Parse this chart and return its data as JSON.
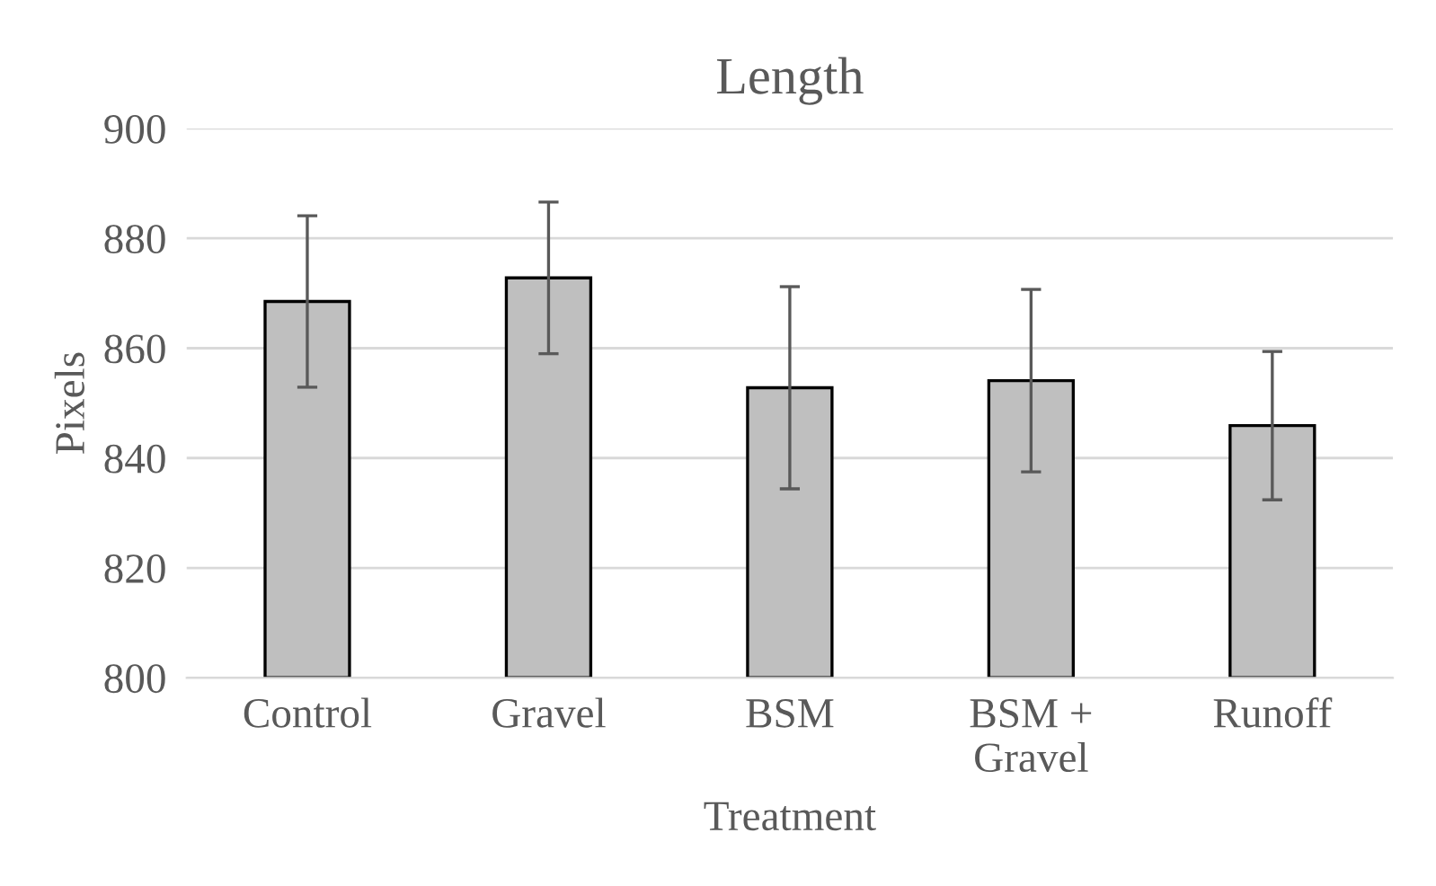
{
  "chart_data": {
    "type": "bar",
    "title": "Length",
    "xlabel": "Treatment",
    "ylabel": "Pixels",
    "categories": [
      "Control",
      "Gravel",
      "BSM",
      "BSM +\nGravel",
      "Runoff"
    ],
    "values": [
      868.5,
      872.8,
      852.8,
      854.1,
      845.9
    ],
    "errors": [
      15.6,
      13.8,
      18.4,
      16.6,
      13.5
    ],
    "color": "#bfbfbf",
    "ylim": [
      800,
      900
    ],
    "yticks": [
      800,
      820,
      840,
      860,
      880,
      900
    ],
    "grid": "y",
    "legend": false
  }
}
